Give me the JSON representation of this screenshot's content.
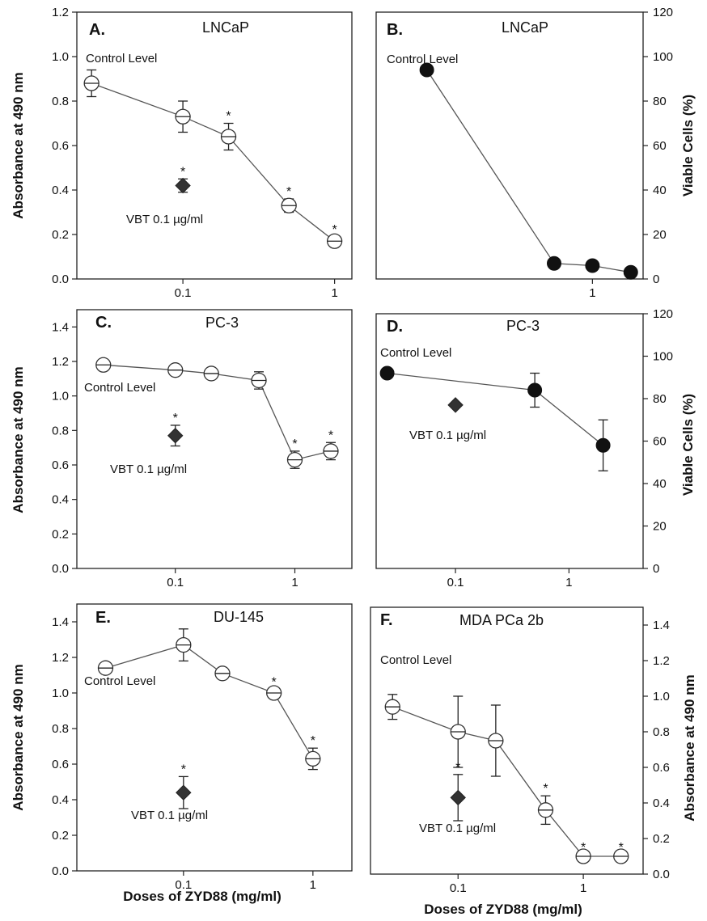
{
  "figure": {
    "x_axis_label": "Doses of ZYD88 (mg/ml)",
    "y_axis_label_absorbance": "Absorbance at 490 nm",
    "y_axis_label_viable": "Viable Cells (%)"
  },
  "chart_data": [
    {
      "id": "A",
      "type": "scatter",
      "panel_label": "A.",
      "title": "LNCaP",
      "xscale": "log",
      "xlim": [
        0.02,
        1.3
      ],
      "ylim": [
        0,
        1.2
      ],
      "yticks": [
        "0.0",
        "0.2",
        "0.4",
        "0.6",
        "0.8",
        "1.0",
        "1.2"
      ],
      "xticks": [
        "0.1",
        "1"
      ],
      "xtick_values": [
        0.1,
        1
      ],
      "ylabel": "Absorbance at 490 nm",
      "yaxis_side": "left",
      "series": [
        {
          "marker": "open-circle",
          "connected": true,
          "x": [
            0.025,
            0.1,
            0.2,
            0.5,
            1.0
          ],
          "y": [
            0.88,
            0.73,
            0.64,
            0.33,
            0.17
          ],
          "err": [
            0.06,
            0.07,
            0.06,
            0.03,
            0.02
          ],
          "star": [
            false,
            false,
            true,
            true,
            true
          ]
        },
        {
          "marker": "filled-diamond",
          "connected": false,
          "x": [
            0.1
          ],
          "y": [
            0.42
          ],
          "err": [
            0.03
          ],
          "star": [
            true
          ]
        }
      ],
      "annotations": [
        "Control Level",
        "VBT 0.1 µg/ml"
      ]
    },
    {
      "id": "B",
      "type": "scatter",
      "panel_label": "B.",
      "title": "LNCaP",
      "xscale": "log",
      "xlim": [
        0.02,
        2.5
      ],
      "ylim": [
        0,
        120
      ],
      "yticks": [
        "0",
        "20",
        "40",
        "60",
        "80",
        "100",
        "120"
      ],
      "xticks": [
        "1"
      ],
      "xtick_values": [
        1
      ],
      "ylabel": "Viable Cells (%)",
      "yaxis_side": "right",
      "series": [
        {
          "marker": "filled-circle",
          "connected": true,
          "x": [
            0.05,
            0.5,
            1.0,
            2.0
          ],
          "y": [
            94,
            7,
            6,
            3
          ],
          "err": [
            0,
            0,
            0,
            0
          ],
          "star": [
            false,
            false,
            false,
            false
          ]
        }
      ],
      "annotations": [
        "Control Level"
      ]
    },
    {
      "id": "C",
      "type": "scatter",
      "panel_label": "C.",
      "title": "PC-3",
      "xscale": "log",
      "xlim": [
        0.015,
        3.0
      ],
      "ylim": [
        0,
        1.5
      ],
      "yticks": [
        "0.0",
        "0.2",
        "0.4",
        "0.6",
        "0.8",
        "1.0",
        "1.2",
        "1.4"
      ],
      "xticks": [
        "0.1",
        "1"
      ],
      "xtick_values": [
        0.1,
        1
      ],
      "ylabel": "Absorbance at 490 nm",
      "yaxis_side": "left",
      "series": [
        {
          "marker": "open-circle",
          "connected": true,
          "x": [
            0.025,
            0.1,
            0.2,
            0.5,
            1.0,
            2.0
          ],
          "y": [
            1.18,
            1.15,
            1.13,
            1.09,
            0.63,
            0.68
          ],
          "err": [
            0.02,
            0.02,
            0.02,
            0.05,
            0.05,
            0.05
          ],
          "star": [
            false,
            false,
            false,
            false,
            true,
            true
          ]
        },
        {
          "marker": "filled-diamond",
          "connected": false,
          "x": [
            0.1
          ],
          "y": [
            0.77
          ],
          "err": [
            0.06
          ],
          "star": [
            true
          ]
        }
      ],
      "annotations": [
        "Control Level",
        "VBT 0.1 µg/ml"
      ]
    },
    {
      "id": "D",
      "type": "scatter",
      "panel_label": "D.",
      "title": "PC-3",
      "xscale": "log",
      "xlim": [
        0.02,
        4.5
      ],
      "ylim": [
        0,
        120
      ],
      "yticks": [
        "0",
        "20",
        "40",
        "60",
        "80",
        "100",
        "120"
      ],
      "xticks": [
        "0.1",
        "1"
      ],
      "xtick_values": [
        0.1,
        1
      ],
      "ylabel": "Viable Cells (%)",
      "yaxis_side": "right",
      "series": [
        {
          "marker": "filled-circle",
          "connected": true,
          "x": [
            0.025,
            0.5,
            2.0
          ],
          "y": [
            92,
            84,
            58
          ],
          "err": [
            0,
            8,
            12
          ],
          "star": [
            false,
            false,
            false
          ]
        },
        {
          "marker": "filled-diamond",
          "connected": false,
          "x": [
            0.1
          ],
          "y": [
            77
          ],
          "err": [
            0
          ],
          "star": [
            false
          ]
        }
      ],
      "annotations": [
        "Control Level",
        "VBT 0.1 µg/ml"
      ]
    },
    {
      "id": "E",
      "type": "scatter",
      "panel_label": "E.",
      "title": "DU-145",
      "xscale": "log",
      "xlim": [
        0.015,
        2.0
      ],
      "ylim": [
        0,
        1.5
      ],
      "yticks": [
        "0.0",
        "0.2",
        "0.4",
        "0.6",
        "0.8",
        "1.0",
        "1.2",
        "1.4"
      ],
      "xticks": [
        "0.1",
        "1"
      ],
      "xtick_values": [
        0.1,
        1
      ],
      "ylabel": "Absorbance at 490 nm",
      "yaxis_side": "left",
      "series": [
        {
          "marker": "open-circle",
          "connected": true,
          "x": [
            0.025,
            0.1,
            0.2,
            0.5,
            1.0
          ],
          "y": [
            1.14,
            1.27,
            1.11,
            1.0,
            0.63
          ],
          "err": [
            0.02,
            0.09,
            0.02,
            0.02,
            0.06
          ],
          "star": [
            false,
            false,
            false,
            true,
            true
          ]
        },
        {
          "marker": "filled-diamond",
          "connected": false,
          "x": [
            0.1
          ],
          "y": [
            0.44
          ],
          "err": [
            0.09
          ],
          "star": [
            true
          ]
        }
      ],
      "annotations": [
        "Control Level",
        "VBT 0.1 µg/ml"
      ]
    },
    {
      "id": "F",
      "type": "scatter",
      "panel_label": "F.",
      "title": "MDA PCa 2b",
      "xscale": "log",
      "xlim": [
        0.02,
        3.0
      ],
      "ylim": [
        0,
        1.5
      ],
      "yticks": [
        "0.0",
        "0.2",
        "0.4",
        "0.6",
        "0.8",
        "1.0",
        "1.2",
        "1.4"
      ],
      "xticks": [
        "0.1",
        "1"
      ],
      "xtick_values": [
        0.1,
        1
      ],
      "ylabel": "Absorbance at 490 nm",
      "yaxis_side": "right",
      "series": [
        {
          "marker": "open-circle",
          "connected": true,
          "x": [
            0.03,
            0.1,
            0.2,
            0.5,
            1.0,
            2.0
          ],
          "y": [
            0.94,
            0.8,
            0.75,
            0.36,
            0.1,
            0.1
          ],
          "err": [
            0.07,
            0.2,
            0.2,
            0.08,
            0.01,
            0.01
          ],
          "star": [
            false,
            false,
            false,
            true,
            true,
            true
          ]
        },
        {
          "marker": "filled-diamond",
          "connected": false,
          "x": [
            0.1
          ],
          "y": [
            0.43
          ],
          "err": [
            0.13
          ],
          "star": [
            true
          ]
        }
      ],
      "annotations": [
        "Control Level",
        "VBT 0.1 µg/ml"
      ]
    }
  ]
}
